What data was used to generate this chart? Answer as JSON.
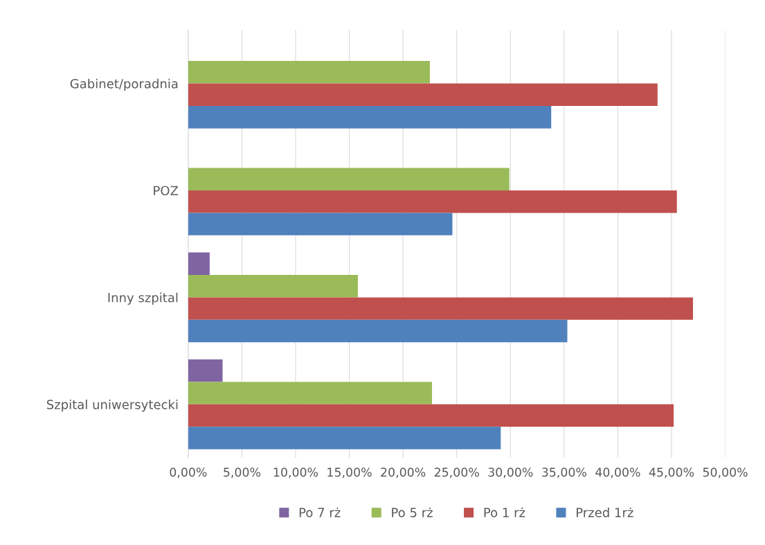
{
  "chart_data": {
    "type": "bar",
    "orientation": "horizontal",
    "categories": [
      "Gabinet/poradnia",
      "POZ",
      "Inny szpital",
      "Szpital uniwersytecki"
    ],
    "series": [
      {
        "name": "Po 7 rż",
        "color": "#8064a2",
        "values": [
          null,
          null,
          2.0,
          3.2
        ]
      },
      {
        "name": "Po 5 rż",
        "color": "#9bbb59",
        "values": [
          22.5,
          29.9,
          15.8,
          22.7
        ]
      },
      {
        "name": "Po 1 rż",
        "color": "#c0504d",
        "values": [
          43.7,
          45.5,
          47.0,
          45.2
        ]
      },
      {
        "name": "Przed 1rż",
        "color": "#4f81bd",
        "values": [
          33.8,
          24.6,
          35.3,
          29.1
        ]
      }
    ],
    "xlim": [
      0,
      50
    ],
    "xticks": [
      {
        "value": 0,
        "label": "0,00%"
      },
      {
        "value": 5,
        "label": "5,00%"
      },
      {
        "value": 10,
        "label": "10,00%"
      },
      {
        "value": 15,
        "label": "15,00%"
      },
      {
        "value": 20,
        "label": "20,00%"
      },
      {
        "value": 25,
        "label": "25,00%"
      },
      {
        "value": 30,
        "label": "30,00%"
      },
      {
        "value": 35,
        "label": "35,00%"
      },
      {
        "value": 40,
        "label": "40,00%"
      },
      {
        "value": 45,
        "label": "45,00%"
      },
      {
        "value": 50,
        "label": "50,00%"
      }
    ],
    "grid": "x",
    "legend": "bottom"
  }
}
